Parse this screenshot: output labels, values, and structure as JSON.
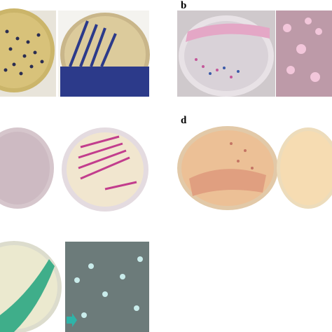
{
  "panels": [
    {
      "label": "b"
    },
    {
      "label": "d"
    }
  ]
}
